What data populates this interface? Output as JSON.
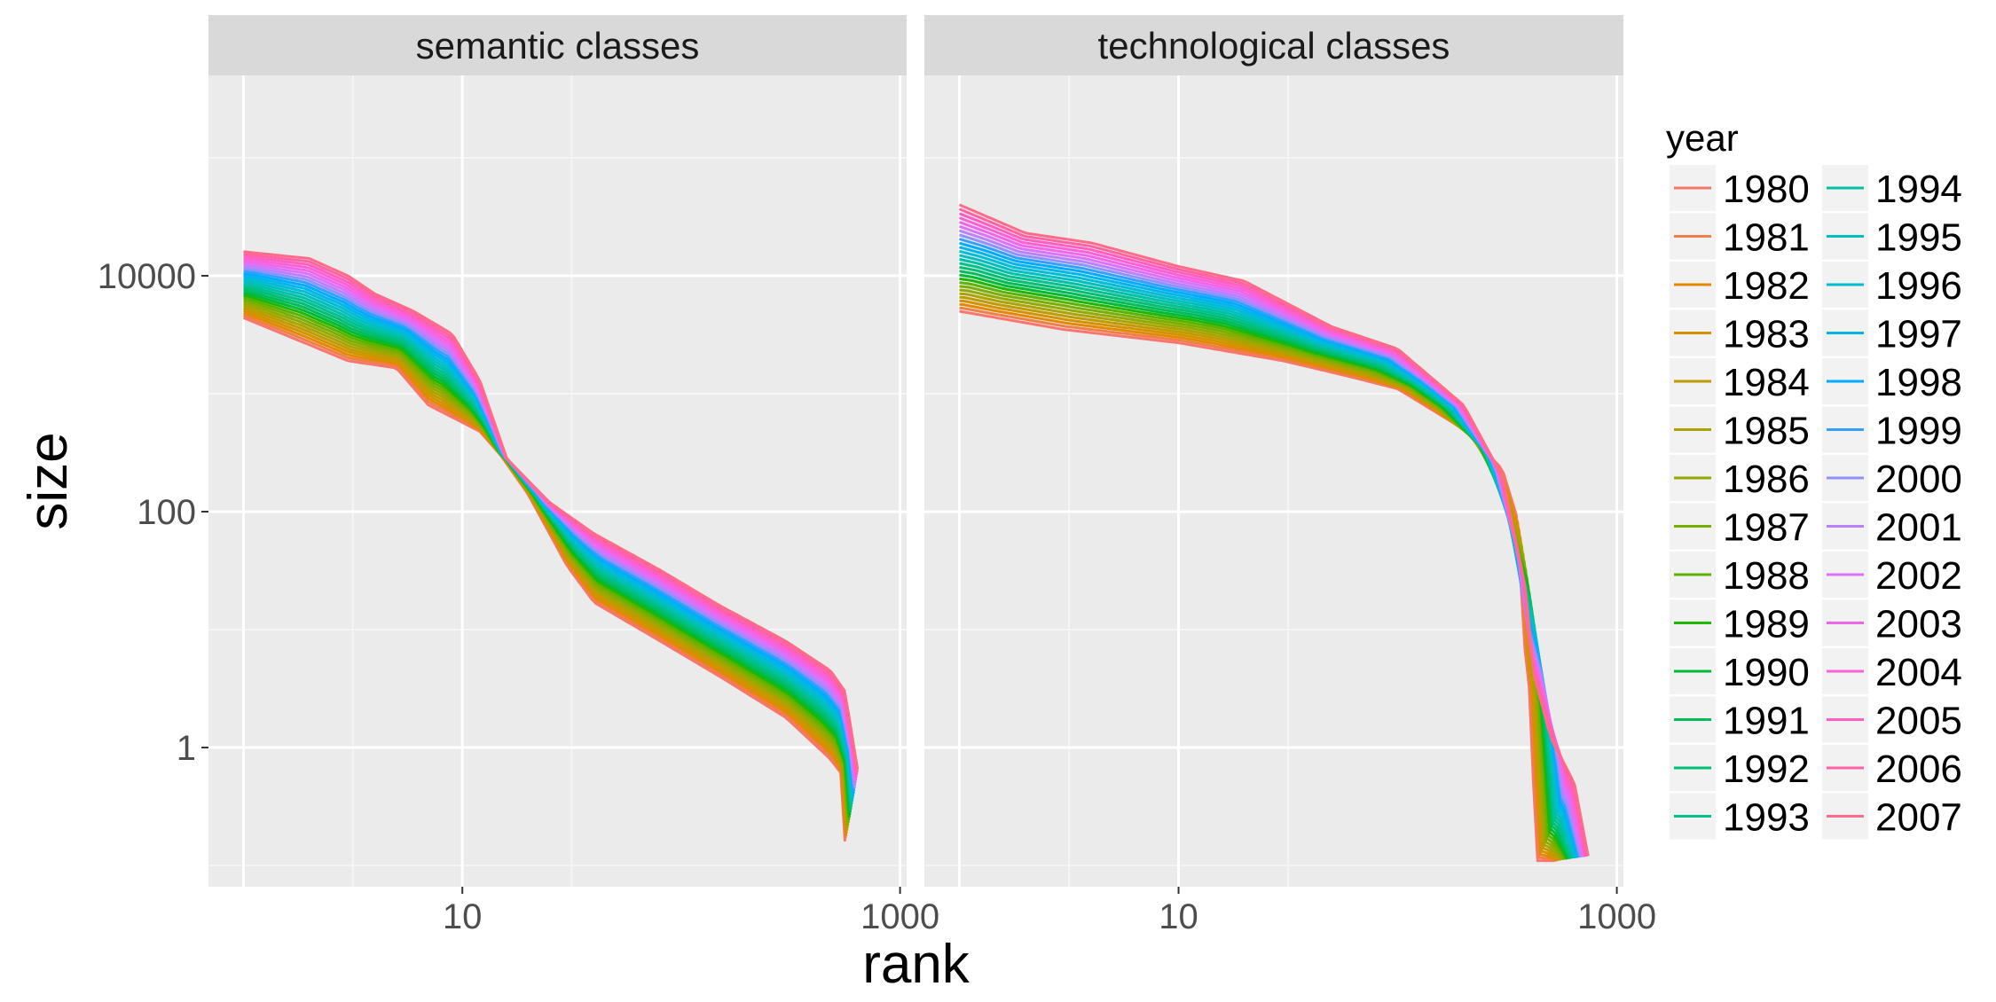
{
  "chart_data": {
    "type": "line",
    "facets": [
      "semantic classes",
      "technological classes"
    ],
    "xlabel": "rank",
    "ylabel": "size",
    "x_scale": "log10",
    "y_scale": "log10",
    "xlim": [
      1,
      1000
    ],
    "ylim": [
      0.1,
      500000
    ],
    "x_ticks": [
      10,
      1000
    ],
    "x_tick_labels": [
      "10",
      "1000"
    ],
    "y_ticks": [
      1,
      100,
      10000
    ],
    "y_tick_labels": [
      "1",
      "100",
      "10000"
    ],
    "grid": true,
    "legend": {
      "title": "year",
      "position": "right",
      "columns": 2,
      "entries": [
        "1980",
        "1981",
        "1982",
        "1983",
        "1984",
        "1985",
        "1986",
        "1987",
        "1988",
        "1989",
        "1990",
        "1991",
        "1992",
        "1993",
        "1994",
        "1995",
        "1996",
        "1997",
        "1998",
        "1999",
        "2000",
        "2001",
        "2002",
        "2003",
        "2004",
        "2005",
        "2006",
        "2007"
      ],
      "colors": [
        "#F8766D",
        "#EF7F49",
        "#E38900",
        "#D39200",
        "#C09B00",
        "#AAA300",
        "#93AA00",
        "#7AAF00",
        "#5BB300",
        "#1FB700",
        "#00BA38",
        "#00BC59",
        "#00BF74",
        "#00C08E",
        "#00C1A7",
        "#00BFBE",
        "#00BCD5",
        "#00B5E8",
        "#00ABFD",
        "#33A0FF",
        "#8F91FF",
        "#BB80FF",
        "#DB72FB",
        "#F066EB",
        "#FB61D7",
        "#FF5FC0",
        "#FF63A4",
        "#FF6C89"
      ]
    },
    "series_profiles": {
      "semantic classes": {
        "first_year": {
          "year": "1980",
          "max_rank": 560,
          "points": [
            [
              1,
              4400
            ],
            [
              2,
              2600
            ],
            [
              3,
              1900
            ],
            [
              5,
              1650
            ],
            [
              7,
              800
            ],
            [
              12,
              480
            ],
            [
              15,
              300
            ],
            [
              20,
              140
            ],
            [
              30,
              35
            ],
            [
              40,
              17
            ],
            [
              80,
              8
            ],
            [
              150,
              4
            ],
            [
              300,
              1.8
            ],
            [
              480,
              0.8
            ],
            [
              540,
              0.6
            ],
            [
              560,
              0.16
            ]
          ]
        },
        "last_year": {
          "year": "2007",
          "max_rank": 640,
          "points": [
            [
              1,
              16000
            ],
            [
              2,
              14000
            ],
            [
              3,
              10000
            ],
            [
              4,
              7000
            ],
            [
              6,
              5000
            ],
            [
              9,
              3200
            ],
            [
              12,
              1300
            ],
            [
              16,
              280
            ],
            [
              25,
              120
            ],
            [
              40,
              65
            ],
            [
              80,
              32
            ],
            [
              150,
              16
            ],
            [
              300,
              8
            ],
            [
              480,
              4.5
            ],
            [
              560,
              3
            ],
            [
              640,
              0.65
            ]
          ]
        }
      },
      "technological classes": {
        "first_year": {
          "year": "1980",
          "max_rank": 520,
          "points": [
            [
              1,
              5000
            ],
            [
              3,
              3500
            ],
            [
              10,
              2700
            ],
            [
              30,
              1900
            ],
            [
              60,
              1400
            ],
            [
              100,
              1100
            ],
            [
              200,
              500
            ],
            [
              300,
              230
            ],
            [
              350,
              90
            ],
            [
              380,
              7
            ],
            [
              400,
              3
            ],
            [
              430,
              0.11
            ]
          ]
        },
        "last_year": {
          "year": "2007",
          "max_rank": 740,
          "points": [
            [
              1,
              40000
            ],
            [
              2,
              23000
            ],
            [
              4,
              19000
            ],
            [
              10,
              12000
            ],
            [
              20,
              9000
            ],
            [
              50,
              3700
            ],
            [
              100,
              2400
            ],
            [
              200,
              800
            ],
            [
              300,
              200
            ],
            [
              380,
              25
            ],
            [
              420,
              4
            ],
            [
              500,
              1.2
            ],
            [
              640,
              0.5
            ],
            [
              740,
              0.12
            ]
          ]
        }
      }
    }
  }
}
